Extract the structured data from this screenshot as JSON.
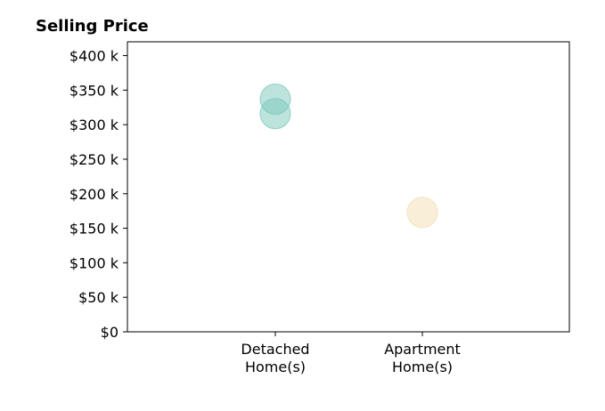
{
  "chart_data": {
    "type": "scatter",
    "title": "Selling Price",
    "xlabel": "",
    "ylabel": "",
    "ylim": [
      0,
      420000
    ],
    "categories": [
      "Detached\nHome(s)",
      "Apartment\nHome(s)"
    ],
    "yticks": [
      {
        "value": 0,
        "label": "$0"
      },
      {
        "value": 50000,
        "label": "$50 k"
      },
      {
        "value": 100000,
        "label": "$100 k"
      },
      {
        "value": 150000,
        "label": "$150 k"
      },
      {
        "value": 200000,
        "label": "$200 k"
      },
      {
        "value": 250000,
        "label": "$250 k"
      },
      {
        "value": 300000,
        "label": "$300 k"
      },
      {
        "value": 350000,
        "label": "$350 k"
      },
      {
        "value": 400000,
        "label": "$400 k"
      }
    ],
    "points": [
      {
        "category": "Detached\nHome(s)",
        "value": 337000,
        "color": "#7cc8bb"
      },
      {
        "category": "Detached\nHome(s)",
        "value": 316000,
        "color": "#7cc8bb"
      },
      {
        "category": "Apartment\nHome(s)",
        "value": 173000,
        "color": "#f3ddb0"
      }
    ],
    "grid": false,
    "legend": "none"
  }
}
